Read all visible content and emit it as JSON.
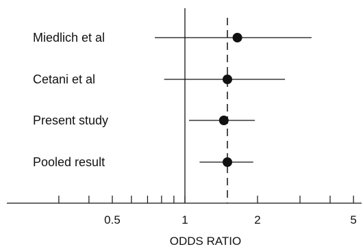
{
  "chart_data": {
    "type": "forest",
    "xlabel": "ODDS RATIO",
    "x_scale": "log",
    "xlim": [
      0.3,
      5
    ],
    "reference_line": 1,
    "pooled_line": 1.5,
    "studies": [
      {
        "label": "Miedlich et al",
        "or": 1.65,
        "ci": [
          0.75,
          3.35
        ]
      },
      {
        "label": "Cetani et al",
        "or": 1.5,
        "ci": [
          0.82,
          2.6
        ]
      },
      {
        "label": "Present study",
        "or": 1.45,
        "ci": [
          1.04,
          1.95
        ]
      },
      {
        "label": "Pooled result",
        "or": 1.5,
        "ci": [
          1.15,
          1.92
        ]
      }
    ],
    "major_ticks": [
      {
        "value": 0.5,
        "label": "0.5"
      },
      {
        "value": 1,
        "label": "1"
      },
      {
        "value": 2,
        "label": "2"
      },
      {
        "value": 5,
        "label": "5"
      }
    ],
    "minor_ticks": [
      0.3,
      0.4,
      0.6,
      0.7,
      0.8,
      0.9,
      3,
      4
    ],
    "colors": {
      "ink": "#111111",
      "background": "#ffffff"
    }
  }
}
